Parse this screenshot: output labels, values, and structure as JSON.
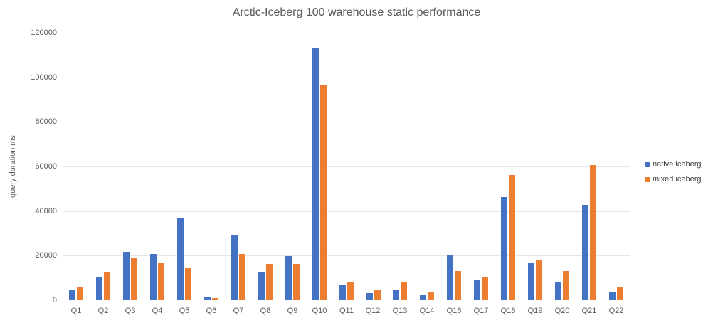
{
  "chart_data": {
    "type": "bar",
    "title": "Arctic-Iceberg 100 warehouse static performance",
    "ylabel": "query duration ms",
    "xlabel": "",
    "ylim": [
      0,
      120000
    ],
    "yticks": [
      0,
      20000,
      40000,
      60000,
      80000,
      100000,
      120000
    ],
    "grid": true,
    "legend_position": "right",
    "categories": [
      "Q1",
      "Q2",
      "Q3",
      "Q4",
      "Q5",
      "Q6",
      "Q7",
      "Q8",
      "Q9",
      "Q10",
      "Q11",
      "Q12",
      "Q13",
      "Q14",
      "Q16",
      "Q17",
      "Q18",
      "Q19",
      "Q20",
      "Q21",
      "Q22"
    ],
    "series": [
      {
        "name": "native iceberg",
        "color": "#4472C4",
        "values": [
          4000,
          10300,
          21400,
          20300,
          36400,
          800,
          28800,
          12400,
          19400,
          113000,
          6600,
          3000,
          4000,
          1800,
          20200,
          8700,
          45800,
          16400,
          7700,
          42300,
          3400
        ]
      },
      {
        "name": "mixed iceberg",
        "color": "#ED7D31",
        "values": [
          5900,
          12600,
          18600,
          16500,
          14400,
          700,
          20400,
          15800,
          15900,
          96000,
          7900,
          4100,
          7500,
          3500,
          12800,
          9800,
          56000,
          17500,
          12900,
          60300,
          5700
        ]
      }
    ]
  }
}
